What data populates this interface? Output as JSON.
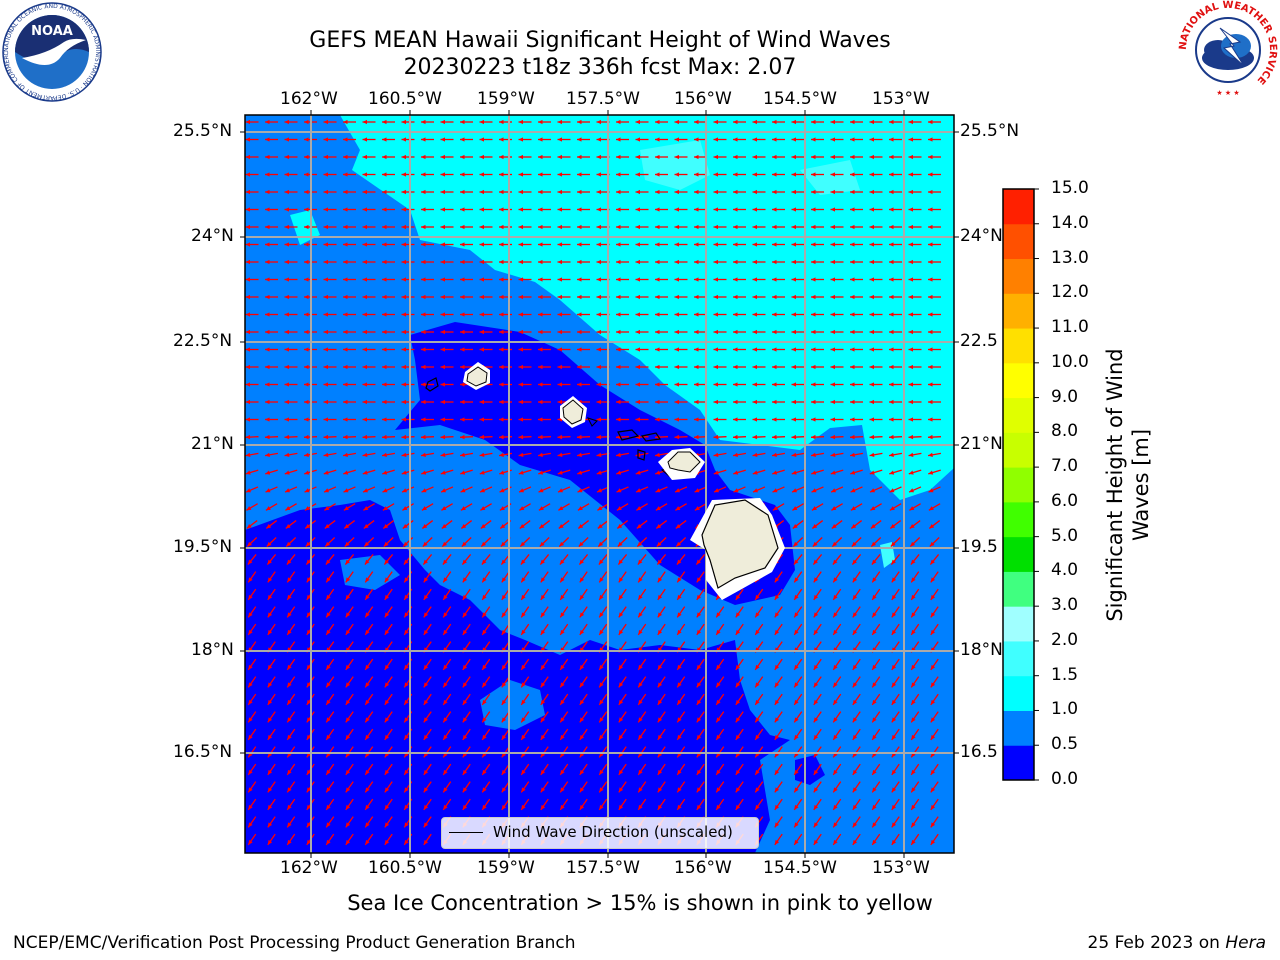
{
  "title": {
    "line1": "GEFS MEAN Hawaii Significant Height of Wind Waves",
    "line2": "20230223 t18z 336h fcst   Max: 2.07"
  },
  "map": {
    "lon_ticks": [
      "162°W",
      "160.5°W",
      "159°W",
      "157.5°W",
      "156°W",
      "154.5°W",
      "153°W"
    ],
    "lat_ticks_left": [
      "25.5°N",
      "24°N",
      "22.5°N",
      "21°N",
      "19.5°N",
      "18°N",
      "16.5°N"
    ],
    "lat_ticks_right": [
      "25.5°N",
      "24°N",
      "22.5",
      "21°N",
      "19.5",
      "18°N",
      "16.5"
    ],
    "legend_label": "Wind Wave Direction (unscaled)",
    "arrow_color": "#ff0000",
    "land_color": "#efedda"
  },
  "colorbar": {
    "label_line1": "Significant Height of Wind",
    "label_line2": "Waves [m]",
    "levels": [
      "0.0",
      "0.5",
      "1.0",
      "1.5",
      "2.0",
      "3.0",
      "4.0",
      "5.0",
      "6.0",
      "7.0",
      "8.0",
      "9.0",
      "10.0",
      "11.0",
      "12.0",
      "13.0",
      "14.0",
      "15.0"
    ],
    "colors": [
      "#0000ff",
      "#0080ff",
      "#00ffff",
      "#40ffff",
      "#a0ffff",
      "#40ff80",
      "#00e000",
      "#40ff00",
      "#90ff00",
      "#c8ff00",
      "#e0ff00",
      "#ffff00",
      "#ffe000",
      "#ffb000",
      "#ff8000",
      "#ff5000",
      "#ff2000"
    ]
  },
  "footer": {
    "sea_ice_note": "Sea Ice Concentration > 15% is shown in pink to yellow",
    "credit": "NCEP/EMC/Verification Post Processing Product Generation Branch",
    "date_text": "25 Feb 2023 on",
    "machine": "Hera"
  },
  "logos": {
    "noaa_text": "NOAA",
    "noaa_ring": "NATIONAL OCEANIC AND ATMOSPHERIC ADMINISTRATION · U.S. DEPARTMENT OF COMMERCE",
    "nws_ring": "NATIONAL WEATHER SERVICE"
  }
}
